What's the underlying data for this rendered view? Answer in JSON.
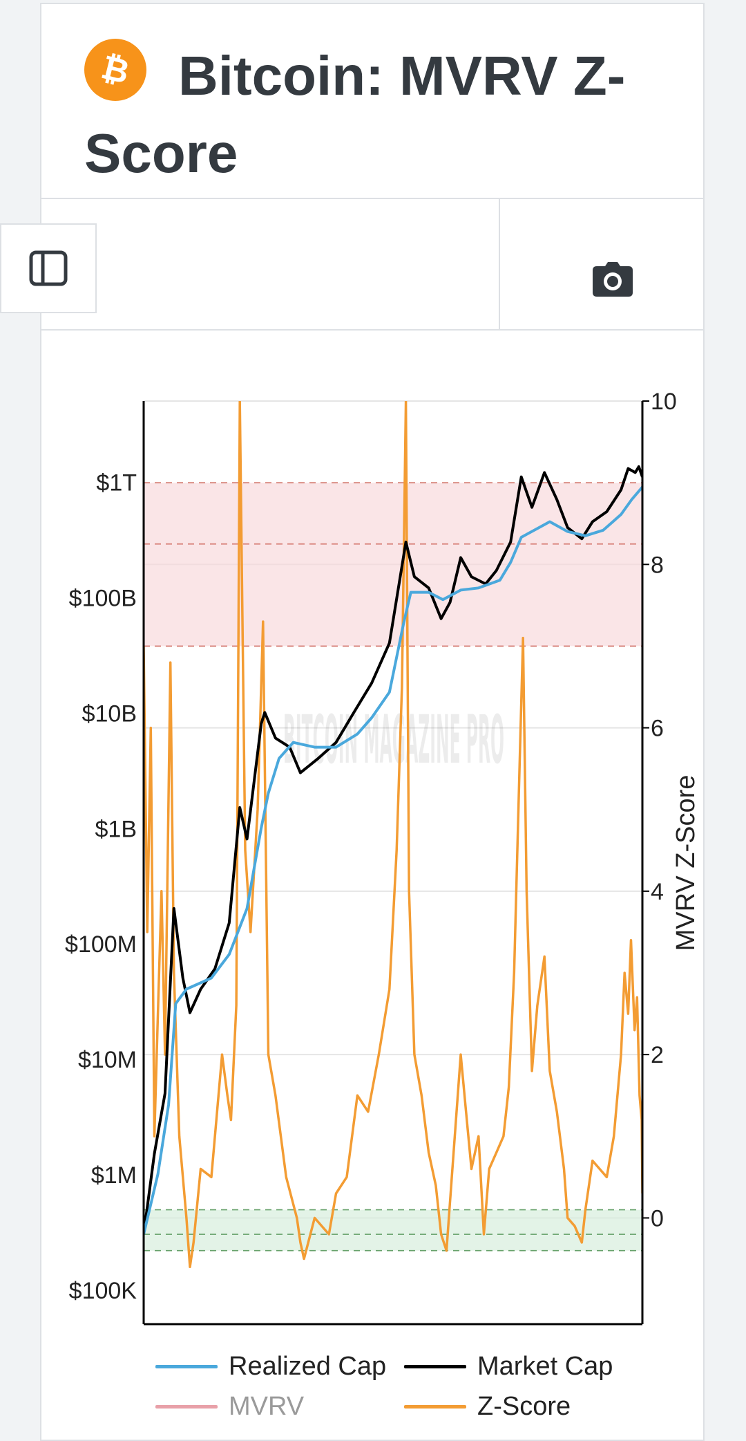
{
  "header": {
    "title": "Bitcoin: MVRV Z-Score",
    "logo_symbol": "₿",
    "logo_icon": "bitcoin-logo-icon"
  },
  "toolbar": {
    "sidebar_toggle_icon": "sidebar-icon",
    "screenshot_icon": "camera-icon"
  },
  "chart_data": {
    "type": "line",
    "title": "Bitcoin: MVRV Z-Score",
    "watermark": "BITCOIN MAGAZINE PRO",
    "y_left": {
      "label": "",
      "scale": "log",
      "range": [
        50000,
        5000000000000
      ],
      "ticks": [
        {
          "value": 100000,
          "label": "$100K"
        },
        {
          "value": 1000000,
          "label": "$1M"
        },
        {
          "value": 10000000,
          "label": "$10M"
        },
        {
          "value": 100000000,
          "label": "$100M"
        },
        {
          "value": 1000000000,
          "label": "$1B"
        },
        {
          "value": 10000000000,
          "label": "$10B"
        },
        {
          "value": 100000000000,
          "label": "$100B"
        },
        {
          "value": 1000000000000,
          "label": "$1T"
        }
      ]
    },
    "y_right": {
      "label": "MVRV Z-Score",
      "range": [
        -1.3,
        10
      ],
      "ticks": [
        {
          "value": 0,
          "label": "0"
        },
        {
          "value": 2,
          "label": "2"
        },
        {
          "value": 4,
          "label": "4"
        },
        {
          "value": 6,
          "label": "6"
        },
        {
          "value": 8,
          "label": "8"
        },
        {
          "value": 10,
          "label": "10"
        }
      ]
    },
    "x": {
      "range": [
        2010.6,
        2024.6
      ],
      "ticks_visible": false
    },
    "bands": [
      {
        "name": "overvalued-zone",
        "from": 7,
        "to": 9,
        "color": "#f8d7da",
        "lines": [
          7,
          8.25,
          9
        ],
        "line_color": "#c0392b"
      },
      {
        "name": "undervalued-zone",
        "from": -0.4,
        "to": 0.1,
        "color": "#d4edda",
        "lines": [
          -0.4,
          -0.2,
          0.1
        ],
        "line_color": "#2e7d32"
      }
    ],
    "series": [
      {
        "name": "Realized Cap",
        "color": "#4aa8dc",
        "axis": "left",
        "points": [
          [
            2010.6,
            300000
          ],
          [
            2011.0,
            1000000
          ],
          [
            2011.3,
            4000000
          ],
          [
            2011.5,
            30000000
          ],
          [
            2011.8,
            40000000
          ],
          [
            2012.5,
            50000000
          ],
          [
            2013.0,
            80000000
          ],
          [
            2013.5,
            200000000
          ],
          [
            2013.9,
            1000000000
          ],
          [
            2014.1,
            2000000000
          ],
          [
            2014.4,
            4000000000
          ],
          [
            2014.8,
            5500000000
          ],
          [
            2015.4,
            5000000000
          ],
          [
            2016.0,
            5000000000
          ],
          [
            2016.6,
            6500000000
          ],
          [
            2017.0,
            9000000000
          ],
          [
            2017.5,
            15000000000
          ],
          [
            2017.9,
            60000000000
          ],
          [
            2018.1,
            110000000000
          ],
          [
            2018.6,
            110000000000
          ],
          [
            2019.0,
            95000000000
          ],
          [
            2019.5,
            115000000000
          ],
          [
            2020.0,
            120000000000
          ],
          [
            2020.6,
            140000000000
          ],
          [
            2020.9,
            200000000000
          ],
          [
            2021.2,
            330000000000
          ],
          [
            2021.7,
            400000000000
          ],
          [
            2022.0,
            450000000000
          ],
          [
            2022.5,
            370000000000
          ],
          [
            2023.0,
            340000000000
          ],
          [
            2023.5,
            380000000000
          ],
          [
            2024.0,
            520000000000
          ],
          [
            2024.3,
            700000000000
          ],
          [
            2024.6,
            900000000000
          ]
        ]
      },
      {
        "name": "Market Cap",
        "color": "#000000",
        "axis": "left",
        "points": [
          [
            2010.6,
            300000
          ],
          [
            2010.9,
            1500000
          ],
          [
            2011.2,
            5000000
          ],
          [
            2011.45,
            200000000
          ],
          [
            2011.7,
            50000000
          ],
          [
            2011.9,
            25000000
          ],
          [
            2012.2,
            40000000
          ],
          [
            2012.6,
            60000000
          ],
          [
            2013.0,
            150000000
          ],
          [
            2013.3,
            1500000000
          ],
          [
            2013.5,
            800000000
          ],
          [
            2013.9,
            8000000000
          ],
          [
            2014.0,
            10000000000
          ],
          [
            2014.3,
            6000000000
          ],
          [
            2014.7,
            5000000000
          ],
          [
            2015.0,
            3000000000
          ],
          [
            2015.5,
            4000000000
          ],
          [
            2016.0,
            5500000000
          ],
          [
            2016.5,
            10000000000
          ],
          [
            2017.0,
            18000000000
          ],
          [
            2017.5,
            40000000000
          ],
          [
            2017.96,
            300000000000
          ],
          [
            2018.2,
            150000000000
          ],
          [
            2018.6,
            120000000000
          ],
          [
            2018.95,
            65000000000
          ],
          [
            2019.2,
            90000000000
          ],
          [
            2019.5,
            220000000000
          ],
          [
            2019.8,
            150000000000
          ],
          [
            2020.2,
            130000000000
          ],
          [
            2020.5,
            170000000000
          ],
          [
            2020.9,
            300000000000
          ],
          [
            2021.2,
            1100000000000
          ],
          [
            2021.5,
            600000000000
          ],
          [
            2021.85,
            1200000000000
          ],
          [
            2022.2,
            700000000000
          ],
          [
            2022.5,
            400000000000
          ],
          [
            2022.9,
            320000000000
          ],
          [
            2023.2,
            450000000000
          ],
          [
            2023.6,
            550000000000
          ],
          [
            2024.0,
            850000000000
          ],
          [
            2024.2,
            1300000000000
          ],
          [
            2024.4,
            1200000000000
          ],
          [
            2024.5,
            1350000000000
          ],
          [
            2024.6,
            1100000000000
          ]
        ]
      },
      {
        "name": "MVRV",
        "color": "#e8a0a8",
        "axis": "right",
        "points": []
      },
      {
        "name": "Z-Score",
        "color": "#f39c33",
        "axis": "right",
        "points": [
          [
            2010.6,
            7.0
          ],
          [
            2010.7,
            3.5
          ],
          [
            2010.8,
            6.0
          ],
          [
            2010.9,
            1.0
          ],
          [
            2011.0,
            2.5
          ],
          [
            2011.1,
            4.0
          ],
          [
            2011.2,
            2.0
          ],
          [
            2011.35,
            6.8
          ],
          [
            2011.45,
            3.0
          ],
          [
            2011.6,
            1.0
          ],
          [
            2011.8,
            0.0
          ],
          [
            2011.9,
            -0.6
          ],
          [
            2012.0,
            -0.3
          ],
          [
            2012.2,
            0.6
          ],
          [
            2012.5,
            0.5
          ],
          [
            2012.8,
            2.0
          ],
          [
            2012.95,
            1.5
          ],
          [
            2013.05,
            1.2
          ],
          [
            2013.2,
            2.6
          ],
          [
            2013.3,
            10.0
          ],
          [
            2013.45,
            4.5
          ],
          [
            2013.6,
            3.5
          ],
          [
            2013.8,
            5.0
          ],
          [
            2013.95,
            7.3
          ],
          [
            2014.1,
            2.0
          ],
          [
            2014.3,
            1.5
          ],
          [
            2014.6,
            0.5
          ],
          [
            2014.9,
            0.0
          ],
          [
            2015.0,
            -0.3
          ],
          [
            2015.1,
            -0.5
          ],
          [
            2015.4,
            0.0
          ],
          [
            2015.8,
            -0.2
          ],
          [
            2016.0,
            0.3
          ],
          [
            2016.3,
            0.5
          ],
          [
            2016.6,
            1.5
          ],
          [
            2016.9,
            1.3
          ],
          [
            2017.2,
            2.0
          ],
          [
            2017.5,
            2.8
          ],
          [
            2017.7,
            4.5
          ],
          [
            2017.85,
            6.5
          ],
          [
            2017.96,
            10.0
          ],
          [
            2018.05,
            4.0
          ],
          [
            2018.2,
            2.0
          ],
          [
            2018.4,
            1.5
          ],
          [
            2018.6,
            0.8
          ],
          [
            2018.8,
            0.4
          ],
          [
            2018.95,
            -0.2
          ],
          [
            2019.1,
            -0.4
          ],
          [
            2019.25,
            0.5
          ],
          [
            2019.5,
            2.0
          ],
          [
            2019.65,
            1.3
          ],
          [
            2019.8,
            0.6
          ],
          [
            2020.0,
            1.0
          ],
          [
            2020.15,
            -0.2
          ],
          [
            2020.3,
            0.6
          ],
          [
            2020.5,
            0.8
          ],
          [
            2020.7,
            1.0
          ],
          [
            2020.85,
            1.6
          ],
          [
            2021.0,
            3.0
          ],
          [
            2021.15,
            5.5
          ],
          [
            2021.25,
            7.1
          ],
          [
            2021.35,
            4.0
          ],
          [
            2021.5,
            1.8
          ],
          [
            2021.65,
            2.6
          ],
          [
            2021.85,
            3.2
          ],
          [
            2022.0,
            1.8
          ],
          [
            2022.2,
            1.3
          ],
          [
            2022.4,
            0.6
          ],
          [
            2022.5,
            0.0
          ],
          [
            2022.7,
            -0.1
          ],
          [
            2022.9,
            -0.3
          ],
          [
            2023.0,
            0.1
          ],
          [
            2023.2,
            0.7
          ],
          [
            2023.4,
            0.6
          ],
          [
            2023.6,
            0.5
          ],
          [
            2023.8,
            1.0
          ],
          [
            2024.0,
            2.0
          ],
          [
            2024.1,
            3.0
          ],
          [
            2024.2,
            2.5
          ],
          [
            2024.28,
            3.4
          ],
          [
            2024.38,
            2.3
          ],
          [
            2024.45,
            2.7
          ],
          [
            2024.52,
            1.5
          ],
          [
            2024.58,
            1.2
          ],
          [
            2024.6,
            0.3
          ]
        ]
      }
    ],
    "legend": [
      {
        "name": "Realized Cap",
        "color": "#4aa8dc",
        "dimmed": false
      },
      {
        "name": "Market Cap",
        "color": "#000000",
        "dimmed": false
      },
      {
        "name": "MVRV",
        "color": "#e8a0a8",
        "dimmed": true
      },
      {
        "name": "Z-Score",
        "color": "#f39c33",
        "dimmed": false
      }
    ]
  }
}
